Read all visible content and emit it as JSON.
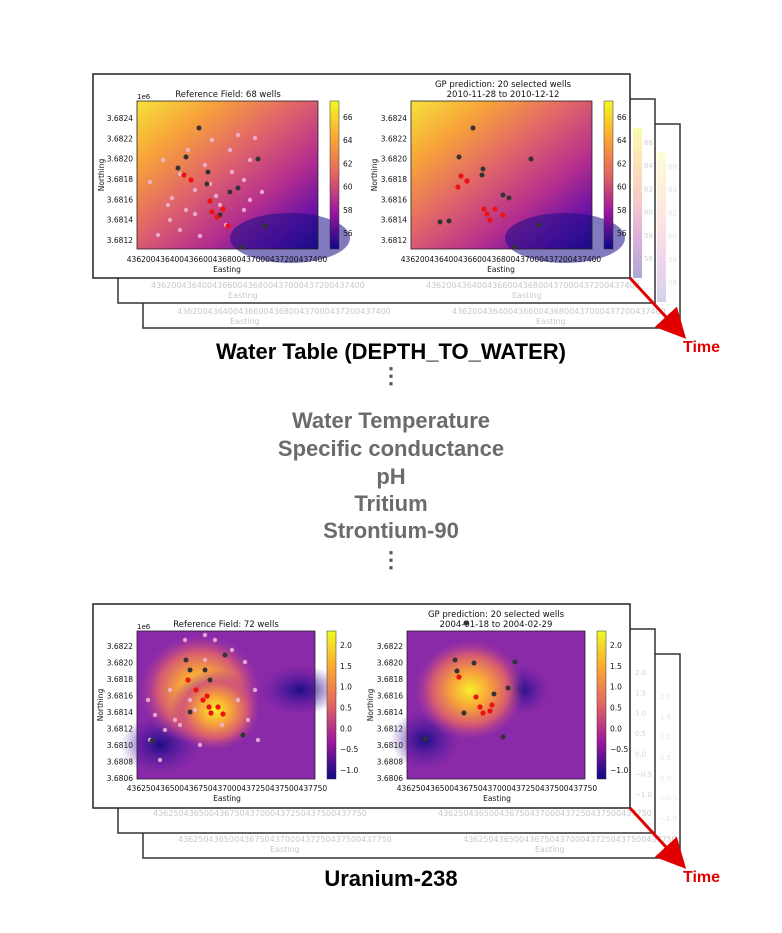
{
  "panels": [
    {
      "name": "water-table",
      "caption": "Water Table (DEPTH_TO_WATER)",
      "time_label": "Time",
      "back_xticks": "436200436400436600436800437000437200437400",
      "back_xlabel": "Easting",
      "back_cbar_ticks": [
        "66",
        "64",
        "62",
        "60",
        "58",
        "56"
      ],
      "left_plot": {
        "title": "Reference Field: 68 wells",
        "offset_text": "1e6",
        "ylabel": "Northing",
        "xlabel": "Easting",
        "yticks": [
          "3.6824",
          "3.6822",
          "3.6820",
          "3.6818",
          "3.6816",
          "3.6814",
          "3.6812"
        ],
        "xticks": "436200436400436600436800437000437200437400",
        "cbar_ticks": [
          "66",
          "64",
          "62",
          "60",
          "58",
          "56"
        ]
      },
      "right_plot": {
        "title": "GP prediction: 20 selected wells",
        "subtitle": "2010-11-28 to 2010-12-12",
        "ylabel": "Northing",
        "xlabel": "Easting",
        "yticks": [
          "3.6824",
          "3.6822",
          "3.6820",
          "3.6818",
          "3.6816",
          "3.6814",
          "3.6812"
        ],
        "xticks": "436200436400436600436800437000437200437400",
        "cbar_ticks": [
          "66",
          "64",
          "62",
          "60",
          "58",
          "56"
        ]
      }
    },
    {
      "name": "uranium",
      "caption": "Uranium-238",
      "time_label": "Time",
      "back_xticks": "436250436500436750437000437250437500437750",
      "back_xlabel": "Easting",
      "back_cbar_ticks": [
        "2.0",
        "1.5",
        "1.0",
        "0.5",
        "0.0",
        "−0.5",
        "−1.0"
      ],
      "left_plot": {
        "title": "Reference Field: 72 wells",
        "offset_text": "1e6",
        "ylabel": "Northing",
        "xlabel": "Easting",
        "yticks": [
          "3.6822",
          "3.6820",
          "3.6818",
          "3.6816",
          "3.6814",
          "3.6812",
          "3.6810",
          "3.6808",
          "3.6806"
        ],
        "xticks": "436250436500436750437000437250437500437750",
        "cbar_ticks": [
          "2.0",
          "1.5",
          "1.0",
          "0.5",
          "0.0",
          "−0.5",
          "−1.0"
        ]
      },
      "right_plot": {
        "title": "GP prediction: 20 selected wells",
        "subtitle": "2004-01-18 to 2004-02-29",
        "ylabel": "Northing",
        "xlabel": "Easting",
        "yticks": [
          "3.6822",
          "3.6820",
          "3.6818",
          "3.6816",
          "3.6814",
          "3.6812",
          "3.6810",
          "3.6808",
          "3.6806"
        ],
        "xticks": "436250436500436750437000437250437500437750",
        "cbar_ticks": [
          "2.0",
          "1.5",
          "1.0",
          "0.5",
          "0.0",
          "−0.5",
          "−1.0"
        ]
      }
    }
  ],
  "variables": [
    "Water Temperature",
    "Specific conductance",
    "pH",
    "Tritium",
    "Strontium-90"
  ],
  "ellipsis": "⋮",
  "colors": {
    "arrow": "#e00000",
    "selected_well": "#ee1111",
    "other_well": "#333333",
    "reference_well": "#f0b8d8",
    "variable_text": "#6b6b6b"
  }
}
